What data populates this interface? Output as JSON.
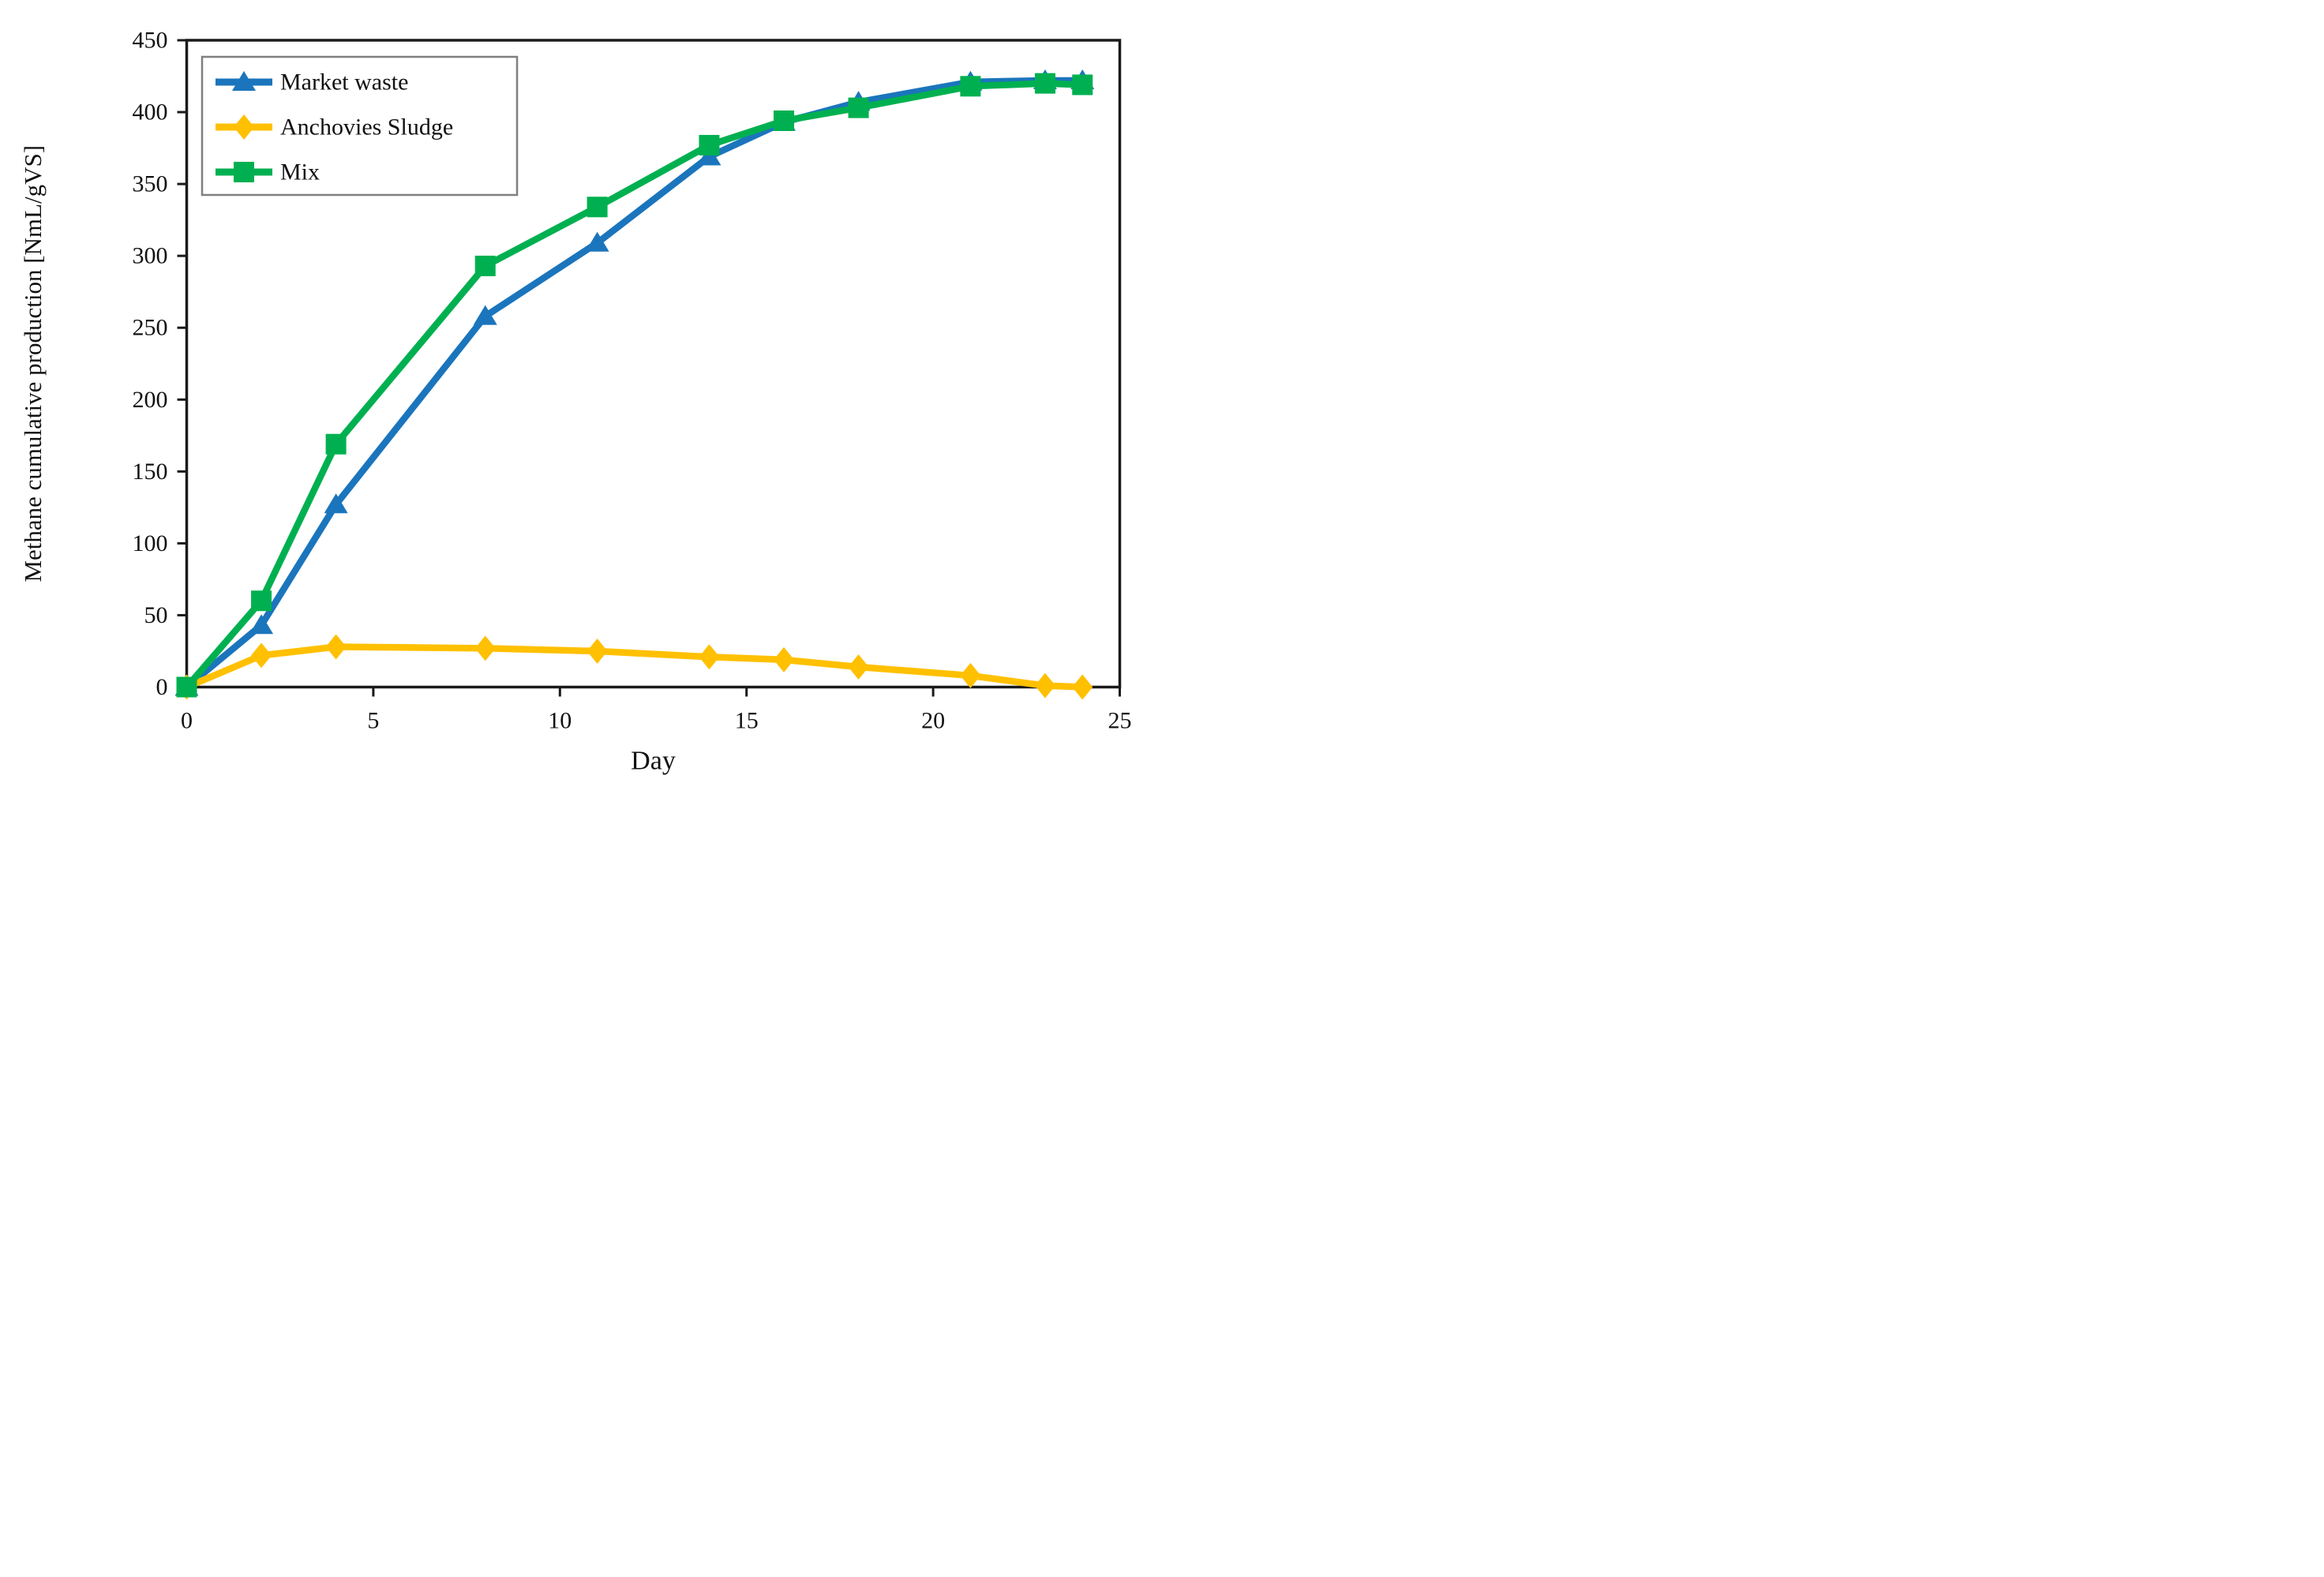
{
  "chart_data": {
    "type": "line",
    "title": "",
    "xlabel": "Day",
    "ylabel": "Methane cumulative production [NmL/gVS]",
    "xlim": [
      0,
      25
    ],
    "ylim": [
      0,
      450
    ],
    "x_ticks": [
      0,
      5,
      10,
      15,
      20,
      25
    ],
    "y_ticks": [
      0,
      50,
      100,
      150,
      200,
      250,
      300,
      350,
      400,
      450
    ],
    "grid": false,
    "legend_position": "top-left-inside",
    "axis_color": "#1a1a1a",
    "legend_border_color": "#7f7f7f",
    "x": [
      0,
      2,
      4,
      8,
      11,
      14,
      16,
      18,
      21,
      23,
      24
    ],
    "series": [
      {
        "name": "Market waste",
        "color": "#1B75BC",
        "marker": "triangle",
        "values": [
          0,
          43,
          127,
          258,
          309,
          369,
          393,
          407,
          421,
          422,
          422
        ]
      },
      {
        "name": "Anchovies Sludge",
        "color": "#FFC000",
        "marker": "diamond",
        "values": [
          0,
          22,
          28,
          27,
          25,
          21,
          19,
          14,
          8,
          1,
          0
        ]
      },
      {
        "name": "Mix",
        "color": "#00B050",
        "marker": "square",
        "values": [
          0,
          60,
          169,
          293,
          334,
          377,
          394,
          403,
          418,
          420,
          419
        ]
      }
    ]
  }
}
